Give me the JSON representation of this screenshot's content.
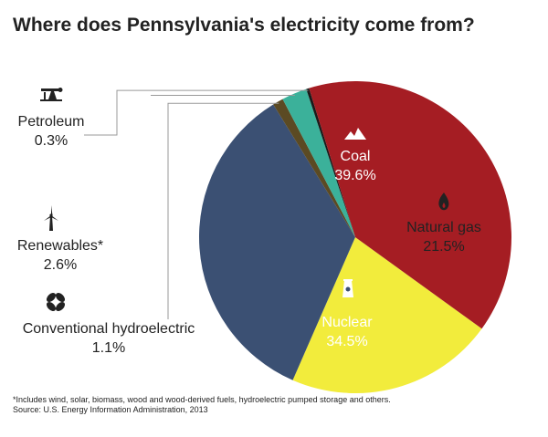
{
  "title": "Where does Pennsylvania's electricity come from?",
  "chart_data": {
    "type": "pie",
    "title": "Where does Pennsylvania's electricity come from?",
    "slices": [
      {
        "label": "Coal",
        "value_label": "39.6%",
        "value": 39.6,
        "color": "#a51d23",
        "icon": "mountain-icon"
      },
      {
        "label": "Natural gas",
        "value_label": "21.5%",
        "value": 21.5,
        "color": "#f2ec3c",
        "icon": "flame-icon"
      },
      {
        "label": "Nuclear",
        "value_label": "34.5%",
        "value": 34.5,
        "color": "#3b5073",
        "icon": "nuclear-plant-icon"
      },
      {
        "label": "Conventional hydroelectric",
        "value_label": "1.1%",
        "value": 1.1,
        "color": "#5b4a23",
        "icon": "turbine-icon"
      },
      {
        "label": "Renewables*",
        "value_label": "2.6%",
        "value": 2.6,
        "color": "#3bb19a",
        "icon": "wind-turbine-icon"
      },
      {
        "label": "Petroleum",
        "value_label": "0.3%",
        "value": 0.3,
        "color": "#1a1a1a",
        "icon": "oil-pump-icon"
      }
    ]
  },
  "footnote": {
    "line1": "*Includes wind, solar, biomass, wood and wood-derived fuels, hydroelectric pumped storage and others.",
    "line2": "Source: U.S. Energy Information Administration, 2013"
  }
}
